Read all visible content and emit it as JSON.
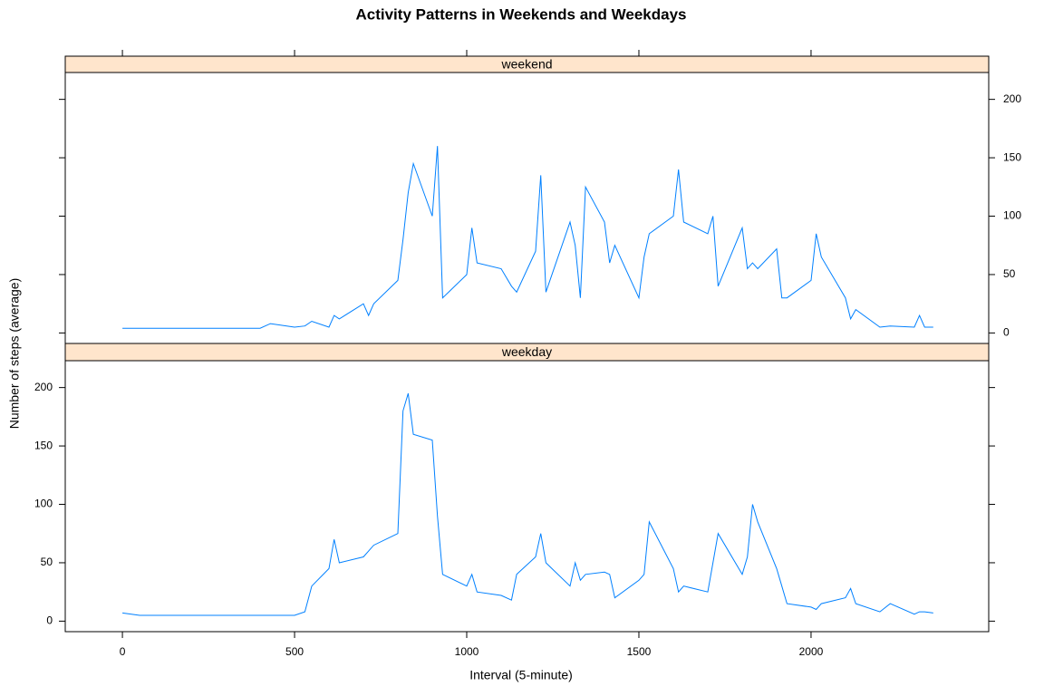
{
  "chart_data": {
    "type": "line",
    "title": "Activity Patterns in Weekends and Weekdays",
    "xlabel": "Interval (5-minute)",
    "ylabel": "Number of steps (average)",
    "x": [
      0,
      50,
      100,
      200,
      300,
      400,
      430,
      500,
      530,
      550,
      600,
      615,
      630,
      700,
      715,
      730,
      800,
      815,
      830,
      845,
      900,
      915,
      930,
      1000,
      1015,
      1030,
      1100,
      1130,
      1145,
      1200,
      1215,
      1230,
      1300,
      1315,
      1330,
      1345,
      1400,
      1415,
      1430,
      1500,
      1515,
      1530,
      1600,
      1615,
      1630,
      1700,
      1715,
      1730,
      1800,
      1815,
      1830,
      1845,
      1900,
      1915,
      1930,
      2000,
      2015,
      2030,
      2100,
      2115,
      2130,
      2200,
      2230,
      2300,
      2315,
      2330,
      2355
    ],
    "series": [
      {
        "name": "weekend",
        "color": "#0080ff",
        "values": [
          4,
          4,
          4,
          4,
          4,
          4,
          8,
          5,
          6,
          10,
          5,
          15,
          12,
          25,
          15,
          25,
          45,
          80,
          120,
          145,
          100,
          160,
          30,
          50,
          90,
          60,
          55,
          40,
          35,
          70,
          135,
          35,
          95,
          75,
          30,
          125,
          95,
          60,
          75,
          30,
          65,
          85,
          100,
          140,
          95,
          85,
          100,
          40,
          90,
          55,
          60,
          55,
          72,
          30,
          30,
          45,
          85,
          65,
          30,
          12,
          20,
          5,
          6,
          5,
          15,
          5,
          5
        ]
      },
      {
        "name": "weekday",
        "color": "#0080ff",
        "values": [
          7,
          5,
          5,
          5,
          5,
          5,
          5,
          5,
          8,
          30,
          45,
          70,
          50,
          55,
          60,
          65,
          75,
          180,
          195,
          160,
          155,
          90,
          40,
          30,
          40,
          25,
          22,
          18,
          40,
          55,
          75,
          50,
          30,
          50,
          35,
          40,
          42,
          40,
          20,
          35,
          40,
          85,
          45,
          25,
          30,
          25,
          50,
          75,
          40,
          55,
          100,
          85,
          45,
          30,
          15,
          12,
          10,
          15,
          20,
          28,
          15,
          8,
          15,
          6,
          8,
          8,
          7
        ]
      }
    ],
    "xlim": [
      -166,
      2516
    ],
    "xticks": [
      0,
      500,
      1000,
      1500,
      2000
    ],
    "ylim": [
      -9,
      223
    ],
    "yticks": [
      0,
      50,
      100,
      150,
      200
    ],
    "strip_color": "#ffe5cc"
  }
}
